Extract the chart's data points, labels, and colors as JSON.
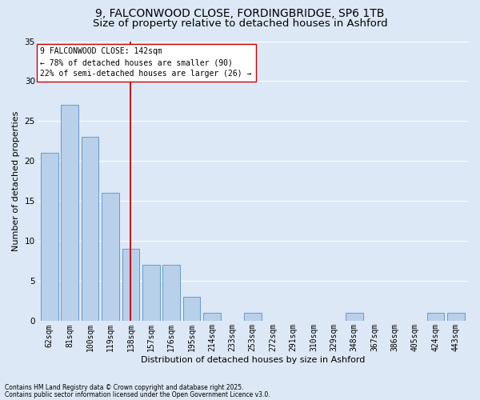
{
  "title1": "9, FALCONWOOD CLOSE, FORDINGBRIDGE, SP6 1TB",
  "title2": "Size of property relative to detached houses in Ashford",
  "xlabel": "Distribution of detached houses by size in Ashford",
  "ylabel": "Number of detached properties",
  "categories": [
    "62sqm",
    "81sqm",
    "100sqm",
    "119sqm",
    "138sqm",
    "157sqm",
    "176sqm",
    "195sqm",
    "214sqm",
    "233sqm",
    "253sqm",
    "272sqm",
    "291sqm",
    "310sqm",
    "329sqm",
    "348sqm",
    "367sqm",
    "386sqm",
    "405sqm",
    "424sqm",
    "443sqm"
  ],
  "values": [
    21,
    27,
    23,
    16,
    9,
    7,
    7,
    3,
    1,
    0,
    1,
    0,
    0,
    0,
    0,
    1,
    0,
    0,
    0,
    1,
    1
  ],
  "bar_color": "#b8d0ea",
  "bar_edge_color": "#6699cc",
  "vline_x": 4,
  "vline_color": "#cc0000",
  "annotation_text": "9 FALCONWOOD CLOSE: 142sqm\n← 78% of detached houses are smaller (90)\n22% of semi-detached houses are larger (26) →",
  "annotation_box_color": "#ffffff",
  "annotation_box_edge": "#cc0000",
  "ylim": [
    0,
    35
  ],
  "yticks": [
    0,
    5,
    10,
    15,
    20,
    25,
    30,
    35
  ],
  "footer1": "Contains HM Land Registry data © Crown copyright and database right 2025.",
  "footer2": "Contains public sector information licensed under the Open Government Licence v3.0.",
  "bg_color": "#dce8f5",
  "grid_color": "#ffffff",
  "title1_fontsize": 10,
  "title2_fontsize": 9.5,
  "axis_label_fontsize": 8,
  "tick_fontsize": 7,
  "annot_fontsize": 7,
  "footer_fontsize": 5.5
}
